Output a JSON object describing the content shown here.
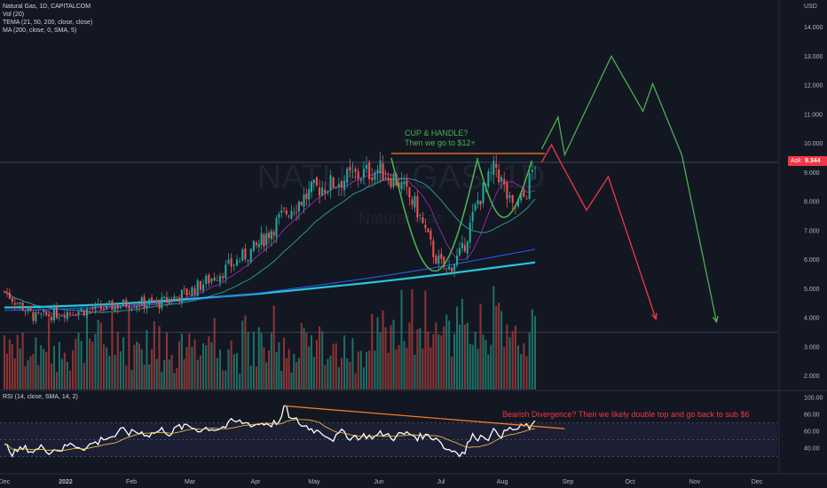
{
  "header": {
    "symbol_line": "Natural Gas, 1D, CAPITALCOM",
    "indicators": [
      "Vol (20)",
      "TEMA (21, 50, 200, close, close)",
      "MA (200, close, 0, SMA, 5)"
    ],
    "rsi_label": "RSI (14, close, SMA, 14, 2)",
    "currency": "USD",
    "watermark_symbol": "NATURALGAS, 1D",
    "watermark_name": "Natural Gas"
  },
  "annotations": {
    "cup_line1": "CUP & HANDLE?",
    "cup_line2": "Then we go to $12+",
    "bearish": "Bearish Divergence? Then we likely double top and go back to sub $6"
  },
  "price_badge": {
    "label": "Ask",
    "value": "9.344"
  },
  "colors": {
    "background": "#131722",
    "up": "#26a69a",
    "down": "#ef5350",
    "green_path": "#4caf50",
    "red_path": "#f23645",
    "orange": "#ff7f27",
    "teal_ma": "#26c6da",
    "blue_ma": "#2962ff",
    "purple": "#9c27b0"
  },
  "chart_data": {
    "type": "candlestick",
    "price_axis": {
      "ticks": [
        "14.000",
        "13.000",
        "12.000",
        "11.000",
        "10.000",
        "9.000",
        "8.000",
        "7.000",
        "6.000",
        "5.000",
        "4.000",
        "3.000",
        "2.000"
      ],
      "ylim": [
        1.5,
        14.6
      ]
    },
    "rsi_axis": {
      "ticks": [
        "100.00",
        "80.00",
        "60.00",
        "40.00"
      ],
      "ylim": [
        25,
        100
      ],
      "band": [
        30,
        70
      ]
    },
    "time_axis": [
      "Dec",
      "2022",
      "Feb",
      "Mar",
      "Apr",
      "May",
      "Jun",
      "Jul",
      "Aug",
      "Sep",
      "Oct",
      "Nov",
      "Dec"
    ],
    "resistance_level": 9.65,
    "projection_green": [
      [
        9.6,
        9.8
      ],
      [
        9.85,
        10.9
      ],
      [
        9.95,
        9.6
      ],
      [
        10.7,
        13.0
      ],
      [
        11.2,
        11.1
      ],
      [
        11.35,
        12.05
      ],
      [
        11.8,
        9.6
      ],
      [
        12.35,
        3.85
      ]
    ],
    "projection_red": [
      [
        9.6,
        9.35
      ],
      [
        9.75,
        9.95
      ],
      [
        9.9,
        9.3
      ],
      [
        10.3,
        7.7
      ],
      [
        10.65,
        8.85
      ],
      [
        11.4,
        3.95
      ]
    ]
  }
}
